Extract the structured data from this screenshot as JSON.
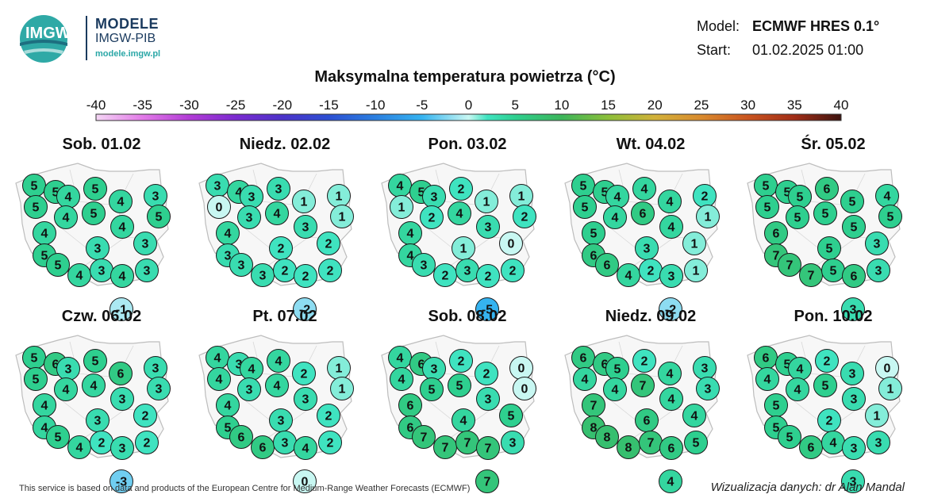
{
  "header": {
    "brand_title": "MODELE",
    "brand_subtitle": "IMGW-PIB",
    "brand_url": "modele.imgw.pl",
    "logo_text": "IMGW"
  },
  "meta": {
    "model_label": "Model:",
    "model_value": "ECMWF HRES 0.1°",
    "start_label": "Start:",
    "start_value": "01.02.2025 01:00"
  },
  "title": "Maksymalna temperatura powietrza (°C)",
  "scale": {
    "ticks": [
      "-40",
      "-35",
      "-30",
      "-25",
      "-20",
      "-15",
      "-10",
      "-5",
      "0",
      "5",
      "10",
      "15",
      "20",
      "25",
      "30",
      "35",
      "40"
    ],
    "color_stops": [
      {
        "t": -40,
        "c": "#f4d6f4"
      },
      {
        "t": -35,
        "c": "#e27ae8"
      },
      {
        "t": -30,
        "c": "#b23cd6"
      },
      {
        "t": -25,
        "c": "#7b2bd0"
      },
      {
        "t": -20,
        "c": "#4c33c9"
      },
      {
        "t": -15,
        "c": "#2c4fd2"
      },
      {
        "t": -10,
        "c": "#2b7fe0"
      },
      {
        "t": -5,
        "c": "#35b3f0"
      },
      {
        "t": 0,
        "c": "#c8f7f2"
      },
      {
        "t": 2,
        "c": "#3fe3c0"
      },
      {
        "t": 5,
        "c": "#2ecf8f"
      },
      {
        "t": 10,
        "c": "#3cb55a"
      },
      {
        "t": 15,
        "c": "#8cbf3a"
      },
      {
        "t": 20,
        "c": "#d2b13a"
      },
      {
        "t": 25,
        "c": "#d98a2e"
      },
      {
        "t": 30,
        "c": "#c9541f"
      },
      {
        "t": 35,
        "c": "#a12d17"
      },
      {
        "t": 40,
        "c": "#3d1410"
      }
    ]
  },
  "maps": [
    {
      "label": "Sob. 01.02",
      "values": [
        5,
        5,
        5,
        4,
        3,
        5,
        5,
        4,
        4,
        5,
        4,
        4,
        5,
        3,
        3,
        5,
        4,
        3,
        4,
        3,
        -1
      ]
    },
    {
      "label": "Niedz. 02.02",
      "values": [
        3,
        4,
        3,
        1,
        1,
        0,
        4,
        3,
        3,
        1,
        4,
        3,
        3,
        2,
        2,
        3,
        3,
        2,
        2,
        2,
        -2
      ]
    },
    {
      "label": "Pon. 03.02",
      "values": [
        4,
        5,
        2,
        1,
        1,
        1,
        4,
        3,
        3,
        2,
        4,
        2,
        4,
        1,
        0,
        3,
        2,
        3,
        2,
        2,
        -5
      ]
    },
    {
      "label": "Wt. 04.02",
      "values": [
        5,
        5,
        4,
        4,
        2,
        5,
        6,
        4,
        4,
        1,
        5,
        4,
        6,
        3,
        1,
        6,
        4,
        2,
        3,
        1,
        -2
      ]
    },
    {
      "label": "Śr. 05.02",
      "values": [
        5,
        5,
        6,
        5,
        4,
        5,
        5,
        5,
        5,
        5,
        6,
        5,
        7,
        5,
        3,
        7,
        7,
        5,
        6,
        3,
        3
      ]
    },
    {
      "label": "Czw. 06.02",
      "values": [
        5,
        6,
        5,
        6,
        3,
        5,
        4,
        3,
        3,
        3,
        4,
        4,
        4,
        3,
        2,
        5,
        4,
        2,
        3,
        2,
        -3
      ]
    },
    {
      "label": "Pt. 07.02",
      "values": [
        4,
        3,
        4,
        2,
        1,
        4,
        4,
        4,
        3,
        1,
        4,
        3,
        5,
        3,
        2,
        6,
        6,
        3,
        4,
        2,
        0
      ]
    },
    {
      "label": "Sob. 08.02",
      "values": [
        4,
        6,
        2,
        2,
        0,
        4,
        5,
        3,
        3,
        0,
        6,
        5,
        6,
        4,
        5,
        7,
        7,
        7,
        7,
        3,
        7
      ]
    },
    {
      "label": "Niedz. 09.02",
      "values": [
        6,
        6,
        2,
        4,
        3,
        4,
        7,
        5,
        4,
        3,
        7,
        4,
        8,
        6,
        4,
        8,
        8,
        7,
        6,
        5,
        4
      ]
    },
    {
      "label": "Pon. 10.02",
      "values": [
        6,
        5,
        2,
        3,
        0,
        4,
        5,
        4,
        3,
        1,
        5,
        4,
        5,
        2,
        1,
        5,
        6,
        4,
        3,
        3,
        3
      ]
    }
  ],
  "footer": {
    "attribution": "This service is based on data and products of the European Centre for Medium-Range Weather Forecasts (ECMWF)",
    "credit": "Wizualizacja danych: dr Alan Mandal"
  }
}
